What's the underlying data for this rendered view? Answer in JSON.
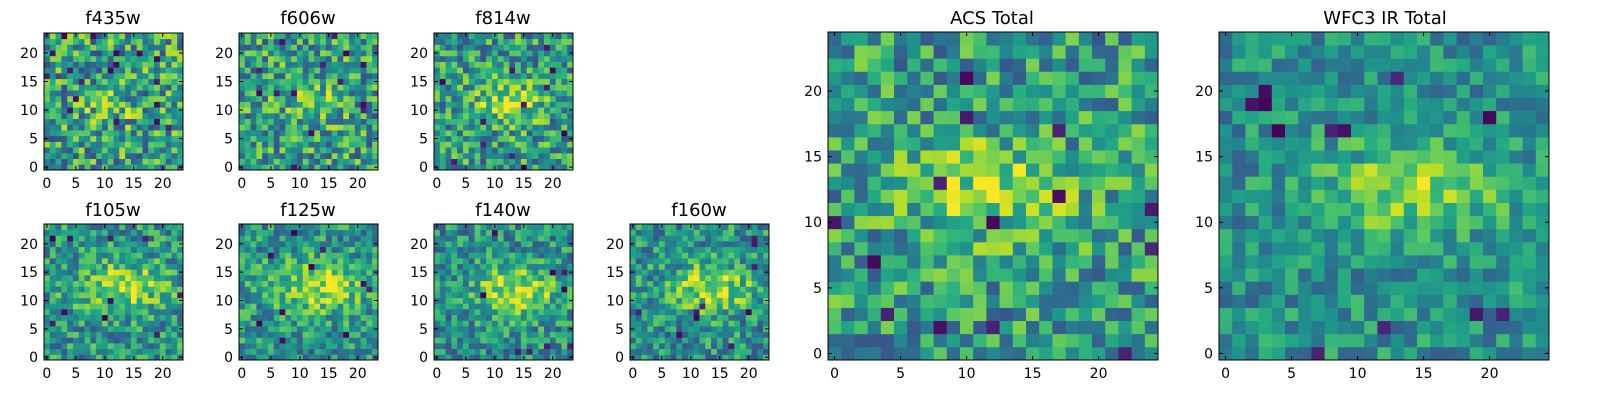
{
  "figure": {
    "colormap": "viridis",
    "colors": [
      "#440154",
      "#31688e",
      "#35b779",
      "#fde725"
    ]
  },
  "chart_data": [
    {
      "type": "heatmap",
      "title": "f435w",
      "grid": [
        24,
        24
      ],
      "xticks": [
        "0",
        "5",
        "10",
        "15",
        "20"
      ],
      "yticks": [
        "0",
        "5",
        "10",
        "15",
        "20"
      ],
      "xlim": [
        -0.5,
        23.5
      ],
      "ylim": [
        -0.5,
        23.5
      ],
      "seed": 11,
      "blob": {
        "cx": 11.0,
        "cy": 10.5,
        "sx": 3.0,
        "sy": 2.2,
        "amp": 0.15
      },
      "noise": 0.34,
      "base": 0.56,
      "low_cells": 18
    },
    {
      "type": "heatmap",
      "title": "f606w",
      "grid": [
        24,
        24
      ],
      "xticks": [
        "0",
        "5",
        "10",
        "15",
        "20"
      ],
      "yticks": [
        "0",
        "5",
        "10",
        "15",
        "20"
      ],
      "xlim": [
        -0.5,
        23.5
      ],
      "ylim": [
        -0.5,
        23.5
      ],
      "seed": 23,
      "blob": {
        "cx": 12.5,
        "cy": 11.5,
        "sx": 3.6,
        "sy": 2.4,
        "amp": 0.22
      },
      "noise": 0.32,
      "base": 0.56,
      "low_cells": 14
    },
    {
      "type": "heatmap",
      "title": "f814w",
      "grid": [
        24,
        24
      ],
      "xticks": [
        "0",
        "5",
        "10",
        "15",
        "20"
      ],
      "yticks": [
        "0",
        "5",
        "10",
        "15",
        "20"
      ],
      "xlim": [
        -0.5,
        23.5
      ],
      "ylim": [
        -0.5,
        23.5
      ],
      "seed": 37,
      "blob": {
        "cx": 12.5,
        "cy": 11.5,
        "sx": 4.0,
        "sy": 2.6,
        "amp": 0.3
      },
      "noise": 0.3,
      "base": 0.55,
      "low_cells": 12
    },
    {
      "type": "heatmap",
      "title": "f105w",
      "grid": [
        24,
        24
      ],
      "xticks": [
        "0",
        "5",
        "10",
        "15",
        "20"
      ],
      "yticks": [
        "0",
        "5",
        "10",
        "15",
        "20"
      ],
      "xlim": [
        -0.5,
        23.5
      ],
      "ylim": [
        -0.5,
        23.5
      ],
      "seed": 41,
      "blob": {
        "cx": 13.0,
        "cy": 12.5,
        "sx": 5.5,
        "sy": 2.8,
        "amp": 0.35
      },
      "noise": 0.26,
      "base": 0.52,
      "low_cells": 10
    },
    {
      "type": "heatmap",
      "title": "f125w",
      "grid": [
        24,
        24
      ],
      "xticks": [
        "0",
        "5",
        "10",
        "15",
        "20"
      ],
      "yticks": [
        "0",
        "5",
        "10",
        "15",
        "20"
      ],
      "xlim": [
        -0.5,
        23.5
      ],
      "ylim": [
        -0.5,
        23.5
      ],
      "seed": 53,
      "blob": {
        "cx": 13.0,
        "cy": 12.5,
        "sx": 5.5,
        "sy": 3.0,
        "amp": 0.38
      },
      "noise": 0.25,
      "base": 0.52,
      "low_cells": 10
    },
    {
      "type": "heatmap",
      "title": "f140w",
      "grid": [
        24,
        24
      ],
      "xticks": [
        "0",
        "5",
        "10",
        "15",
        "20"
      ],
      "yticks": [
        "0",
        "5",
        "10",
        "15",
        "20"
      ],
      "xlim": [
        -0.5,
        23.5
      ],
      "ylim": [
        -0.5,
        23.5
      ],
      "seed": 67,
      "blob": {
        "cx": 14.0,
        "cy": 12.0,
        "sx": 5.0,
        "sy": 3.0,
        "amp": 0.42
      },
      "noise": 0.25,
      "base": 0.5,
      "low_cells": 9
    },
    {
      "type": "heatmap",
      "title": "f160w",
      "grid": [
        24,
        24
      ],
      "xticks": [
        "0",
        "5",
        "10",
        "15",
        "20"
      ],
      "yticks": [
        "0",
        "5",
        "10",
        "15",
        "20"
      ],
      "xlim": [
        -0.5,
        23.5
      ],
      "ylim": [
        -0.5,
        23.5
      ],
      "seed": 79,
      "blob": {
        "cx": 13.5,
        "cy": 12.0,
        "sx": 5.0,
        "sy": 3.0,
        "amp": 0.4
      },
      "noise": 0.26,
      "base": 0.5,
      "low_cells": 10
    },
    {
      "type": "heatmap",
      "title": "ACS Total",
      "grid": [
        25,
        25
      ],
      "xticks": [
        "0",
        "5",
        "10",
        "15",
        "20"
      ],
      "yticks": [
        "0",
        "5",
        "10",
        "15",
        "20"
      ],
      "xlim": [
        -0.5,
        24.5
      ],
      "ylim": [
        -0.5,
        24.5
      ],
      "seed": 97,
      "blob": {
        "cx": 11.5,
        "cy": 12.5,
        "sx": 4.5,
        "sy": 2.5,
        "amp": 0.3
      },
      "noise": 0.28,
      "base": 0.55,
      "low_cells": 14
    },
    {
      "type": "heatmap",
      "title": "WFC3 IR Total",
      "grid": [
        25,
        25
      ],
      "xticks": [
        "0",
        "5",
        "10",
        "15",
        "20"
      ],
      "yticks": [
        "0",
        "5",
        "10",
        "15",
        "20"
      ],
      "xlim": [
        -0.5,
        24.5
      ],
      "ylim": [
        -0.5,
        24.5
      ],
      "seed": 113,
      "blob": {
        "cx": 14.0,
        "cy": 12.5,
        "sx": 5.0,
        "sy": 2.5,
        "amp": 0.32
      },
      "noise": 0.2,
      "base": 0.5,
      "low_cells": 12
    }
  ]
}
